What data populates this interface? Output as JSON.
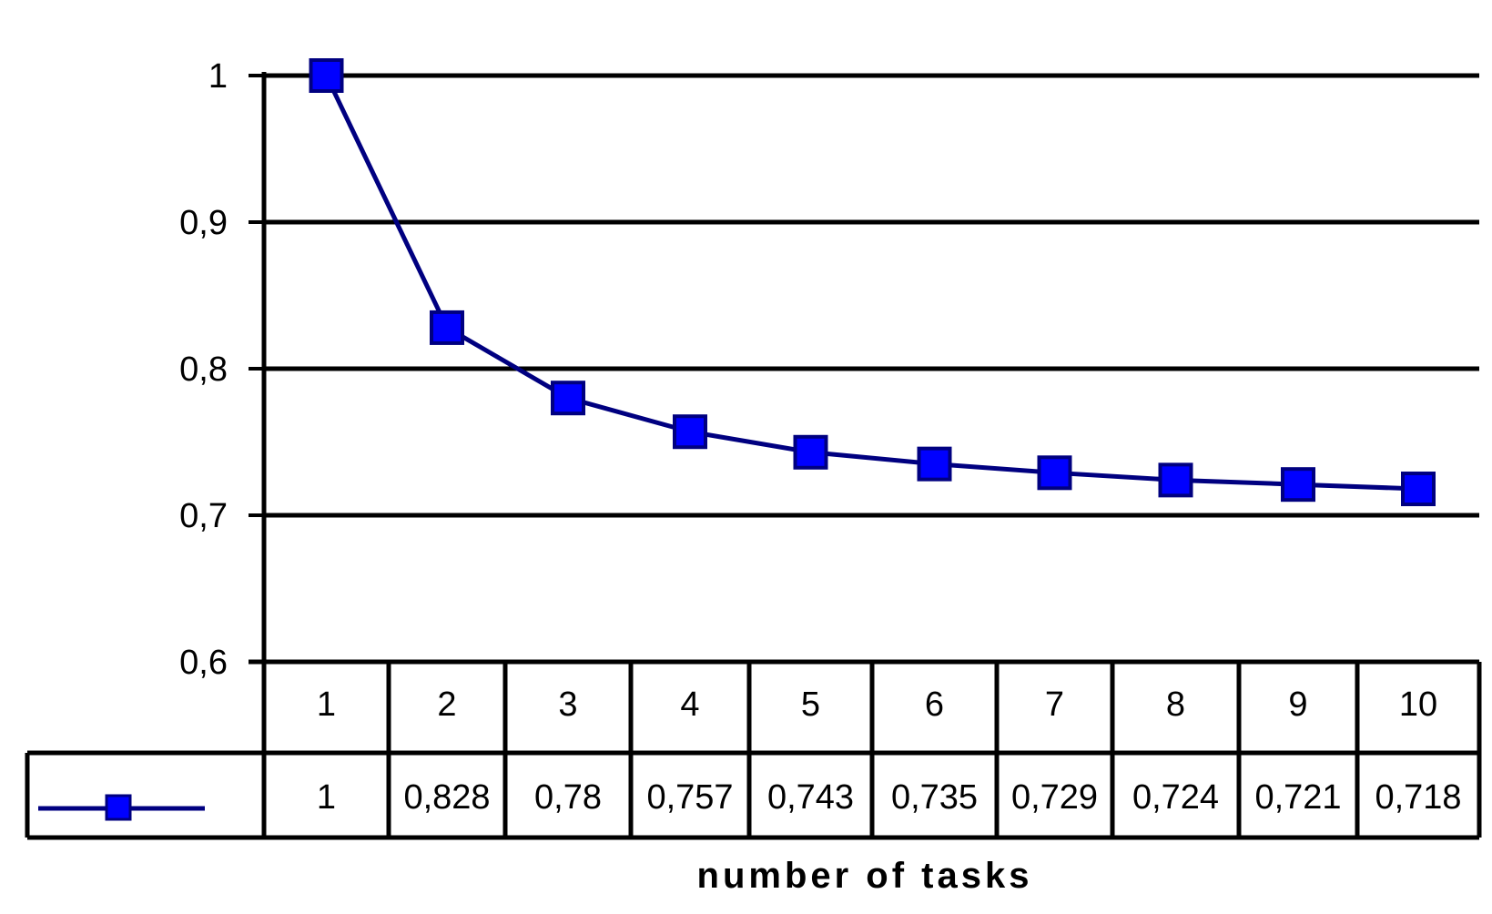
{
  "chart_data": {
    "type": "line",
    "categories": [
      "1",
      "2",
      "3",
      "4",
      "5",
      "6",
      "7",
      "8",
      "9",
      "10"
    ],
    "series": [
      {
        "values": [
          1,
          0.828,
          0.78,
          0.757,
          0.743,
          0.735,
          0.729,
          0.724,
          0.721,
          0.718
        ]
      }
    ],
    "table_values": [
      "1",
      "0,828",
      "0,78",
      "0,757",
      "0,743",
      "0,735",
      "0,729",
      "0,724",
      "0,721",
      "0,718"
    ],
    "yticks": [
      {
        "value": 1.0,
        "label": "1"
      },
      {
        "value": 0.9,
        "label": "0,9"
      },
      {
        "value": 0.8,
        "label": "0,8"
      },
      {
        "value": 0.7,
        "label": "0,7"
      },
      {
        "value": 0.6,
        "label": "0,6"
      }
    ],
    "ylim": [
      0.6,
      1.0
    ],
    "xlabel": "number of tasks",
    "ylabel": "",
    "title": "",
    "grid": true,
    "data_table": true,
    "colors": {
      "line": "#000080",
      "marker": "#0000ff",
      "axis": "#000000"
    }
  }
}
